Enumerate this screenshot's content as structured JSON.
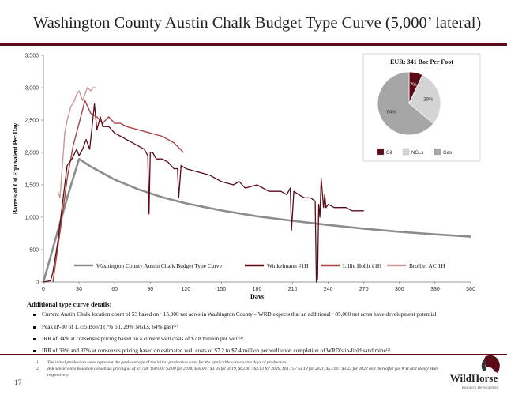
{
  "page": {
    "title": "Washington County Austin Chalk Budget Type Curve (5,000’ lateral)",
    "page_number": "17"
  },
  "details": {
    "header": "Additional type curve details:",
    "bullets": [
      "Current Austin Chalk location count of 53 based on ~15,000 net acres in Washington County – WRD expects that an additional ~85,000 net acres have development potential",
      "Peak IP-30 of 1,755 Boe/d (7% oil, 29% NGLs, 64% gas)⁽¹⁾",
      "IRR of 34% at consensus pricing based on a current well costs of $7.8 million per well⁽²⁾",
      "IRR of 39% and 37% at consensus pricing based on estimated well costs of $7.2 to $7.4 million per well upon completion of WRD’s in-field sand mine⁽²⁾"
    ]
  },
  "footnotes": [
    {
      "num": "1.",
      "text": "The initial production rates represent the peak average of the initial production rates for the applicable consecutive days of production."
    },
    {
      "num": "2.",
      "text": "IRR sensitivities based on consensus pricing as of 3/1/18: $60.00 / $3.00 for 2018, $60.00 / $3.05 for 2019, $62.00 / $3.13 for 2020, $61.75 / $3.19 for 2021, $57.00 / $3.22 for 2022 and thereafter for WTI and Henry Hub,"
    },
    {
      "num": "",
      "text": "respectively."
    }
  ],
  "logo": {
    "name": "WildHorse",
    "tagline": "Resource Development"
  },
  "colors": {
    "accent": "#5a0b16",
    "budget": "#8c8c8c",
    "winkelmann": "#5a0b16",
    "lillie": "#a94444",
    "brollier": "#c89a9a",
    "pie_oil": "#5a0b16",
    "pie_ngl": "#d4d4d4",
    "pie_gas": "#a6a6a6"
  },
  "chart_data": [
    {
      "type": "line",
      "xlabel": "Days",
      "ylabel": "Barrels of Oil Equivalent Per Day",
      "xlim": [
        0,
        360
      ],
      "ylim": [
        0,
        3500
      ],
      "xticks": [
        0,
        30,
        60,
        90,
        120,
        150,
        180,
        210,
        240,
        270,
        300,
        330,
        360
      ],
      "yticks": [
        0,
        500,
        1000,
        1500,
        2000,
        2500,
        3000,
        3500
      ],
      "ytick_labels": [
        "0",
        "500",
        "1,000",
        "1,500",
        "2,000",
        "2,500",
        "3,000",
        "3,500"
      ],
      "grid": false,
      "legend_position": "bottom",
      "series": [
        {
          "name": "Washington County Austin Chalk Budget Type Curve",
          "x": [
            0,
            10,
            20,
            30,
            40,
            60,
            80,
            100,
            120,
            150,
            180,
            210,
            240,
            270,
            300,
            330,
            360
          ],
          "values": [
            0,
            650,
            1300,
            1900,
            1780,
            1580,
            1430,
            1310,
            1215,
            1105,
            1015,
            945,
            880,
            825,
            775,
            735,
            700
          ]
        },
        {
          "name": "Winkelmann #1H",
          "x": [
            0,
            6,
            8,
            12,
            16,
            20,
            24,
            28,
            30,
            33,
            36,
            39,
            41,
            43,
            45,
            48,
            50,
            55,
            60,
            65,
            70,
            75,
            80,
            85,
            88,
            89,
            90,
            92,
            95,
            100,
            105,
            110,
            113,
            114,
            116,
            120,
            130,
            140,
            150,
            160,
            165,
            170,
            180,
            190,
            200,
            205,
            208,
            209,
            211,
            215,
            220,
            225,
            229,
            230,
            231,
            232,
            233,
            234,
            236,
            237,
            238,
            240,
            245,
            250,
            255,
            260,
            265,
            270
          ],
          "values": [
            0,
            20,
            150,
            600,
            1200,
            1800,
            1900,
            2050,
            1950,
            2050,
            2200,
            2050,
            2400,
            2750,
            2350,
            2550,
            2400,
            2400,
            2300,
            2250,
            2200,
            2150,
            2100,
            2050,
            1950,
            1050,
            2000,
            2000,
            1900,
            1900,
            1850,
            1750,
            1750,
            1300,
            1800,
            1750,
            1700,
            1650,
            1550,
            1500,
            1550,
            1450,
            1500,
            1400,
            1400,
            1350,
            1450,
            800,
            1400,
            1350,
            1300,
            1300,
            1250,
            0,
            50,
            1200,
            1000,
            1600,
            1150,
            1350,
            1150,
            1200,
            1150,
            1150,
            1150,
            1100,
            1100,
            1100
          ]
        },
        {
          "name": "Lillie Hohlt #1H",
          "x": [
            8,
            15,
            20,
            25,
            30,
            35,
            40,
            45,
            50,
            55,
            60,
            65,
            70,
            80,
            90,
            100,
            110,
            118
          ],
          "values": [
            0,
            900,
            1600,
            2100,
            2450,
            2800,
            2600,
            2550,
            2450,
            2550,
            2450,
            2450,
            2400,
            2350,
            2300,
            2250,
            2150,
            2000
          ]
        },
        {
          "name": "Brollier AC 1H",
          "x": [
            12,
            14,
            16,
            18,
            20,
            23,
            26,
            28,
            30,
            33,
            35,
            37,
            40,
            42,
            44
          ],
          "values": [
            1400,
            1300,
            1800,
            2300,
            2500,
            2700,
            2800,
            2900,
            2950,
            2800,
            2900,
            3000,
            2950,
            3000,
            3000
          ]
        }
      ]
    },
    {
      "type": "pie",
      "title": "EUR: 341 Boe Per Foot",
      "categories": [
        "Oil",
        "NGLs",
        "Gas"
      ],
      "values": [
        7,
        29,
        64
      ],
      "labels": [
        "7%",
        "29%",
        "64%"
      ]
    }
  ]
}
